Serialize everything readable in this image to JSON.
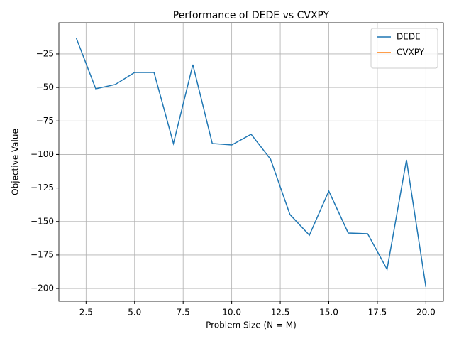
{
  "chart_data": {
    "type": "line",
    "title": "Performance of DEDE vs CVXPY",
    "x_label": "Problem Size (N = M)",
    "y_label": "Objective Value",
    "x": [
      2,
      3,
      4,
      5,
      6,
      7,
      8,
      9,
      10,
      11,
      12,
      13,
      14,
      15,
      16,
      17,
      18,
      19,
      20
    ],
    "series": [
      {
        "name": "DEDE",
        "color": "#1f77b4",
        "values": [
          -13.3,
          -51,
          -47.8,
          -38.8,
          -38.8,
          -91.8,
          -33,
          -91.8,
          -92.9,
          -84.9,
          -103.5,
          -144.8,
          -160.2,
          -127.3,
          -158.6,
          -159.1,
          -185.7,
          -104,
          -198.9
        ]
      },
      {
        "name": "CVXPY",
        "color": "#ff7f0e",
        "values": [
          null,
          null,
          null,
          null,
          null,
          null,
          null,
          null,
          null,
          null,
          null,
          null,
          null,
          null,
          null,
          null,
          null,
          null,
          null
        ]
      }
    ],
    "xlim": [
      1.1,
      20.9
    ],
    "ylim": [
      -209.5,
      -1.7
    ],
    "xticks": [
      2.5,
      {
        "value": 5,
        "label": "5.0"
      },
      7.5,
      {
        "value": 10,
        "label": "10.0"
      },
      12.5,
      {
        "value": 15,
        "label": "15.0"
      },
      17.5,
      {
        "value": 20,
        "label": "20.0"
      }
    ],
    "yticks": [
      {
        "value": -200,
        "label": "−200"
      },
      {
        "value": -175,
        "label": "−175"
      },
      {
        "value": -150,
        "label": "−150"
      },
      {
        "value": -125,
        "label": "−125"
      },
      {
        "value": -100,
        "label": "−100"
      },
      {
        "value": -75,
        "label": "−75"
      },
      {
        "value": -50,
        "label": "−50"
      },
      {
        "value": -25,
        "label": "−25"
      }
    ],
    "grid": true,
    "legend": "upper right"
  }
}
